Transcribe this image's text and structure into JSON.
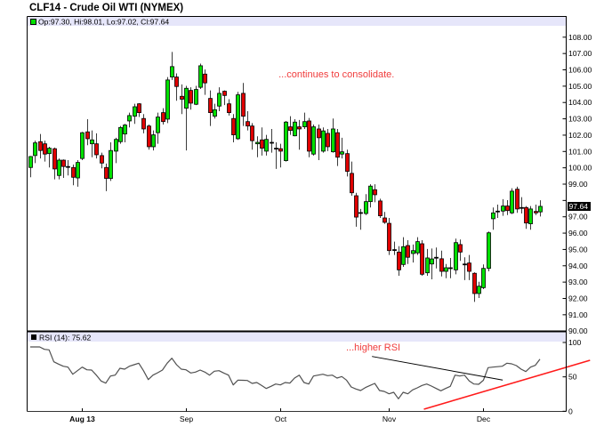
{
  "header": {
    "title": "CLF14 - Crude Oil WTI (NYMEX)"
  },
  "main_panel": {
    "legend_icon": "green-square-icon",
    "legend_text": "Op:97.30, Hi:98.01, Lo:97.02, Cl:97.64",
    "current_price_label": "97.64"
  },
  "rsi_panel": {
    "legend_icon": "black-square-icon",
    "legend_text": "RSI (14): 75.62"
  },
  "colors": {
    "up": "#00e000",
    "down": "#e00000",
    "doji": "#000000",
    "wick": "#3c3c3c",
    "band": "#e6e6fa",
    "annotation": "#f03c3c",
    "rsi_line": "#505050",
    "trend_black": "#000000",
    "trend_red": "#ff1a1a"
  },
  "chart_data": [
    {
      "type": "candlestick",
      "title": "CLF14 - Crude Oil WTI (NYMEX)",
      "legend": "Op:97.30, Hi:98.01, Lo:97.02, Cl:97.64",
      "legend_position": "top-left",
      "xlabel": "",
      "ylabel": "",
      "grid": false,
      "ylim": [
        90,
        109.28
      ],
      "y_ticks": [
        90,
        91,
        92,
        93,
        94,
        95,
        96,
        97,
        98,
        99,
        100,
        101,
        102,
        103,
        104,
        105,
        106,
        107,
        108
      ],
      "y_tick_labels": [
        "90.00",
        "91.00",
        "92.00",
        "93.00",
        "94.00",
        "95.00",
        "96.00",
        "97.00",
        "98.00",
        "99.00",
        "100.00",
        "101.00",
        "102.00",
        "103.00",
        "104.00",
        "105.00",
        "106.00",
        "107.00",
        "108.00"
      ],
      "current_price": 97.64,
      "current_price_label": "97.64",
      "x_ticks": [
        {
          "label": "Aug 13",
          "index": 11,
          "bold": true
        },
        {
          "label": "Sep",
          "index": 33,
          "bold": false
        },
        {
          "label": "Oct",
          "index": 53,
          "bold": false
        },
        {
          "label": "Nov",
          "index": 76,
          "bold": false
        },
        {
          "label": "Dec",
          "index": 96,
          "bold": false
        }
      ],
      "series": [
        {
          "name": "CLF14",
          "ohlc_fields": [
            "open",
            "high",
            "low",
            "close"
          ],
          "ohlc": [
            [
              100.02,
              100.72,
              99.42,
              100.69
            ],
            [
              100.75,
              101.66,
              100.29,
              101.53
            ],
            [
              101.6,
              102.07,
              100.57,
              101.06
            ],
            [
              101.47,
              101.66,
              100.38,
              100.84
            ],
            [
              100.87,
              101.29,
              100.02,
              101.2
            ],
            [
              101.17,
              101.24,
              99.29,
              99.93
            ],
            [
              99.53,
              100.57,
              99.29,
              100.47
            ],
            [
              100.47,
              100.51,
              99.38,
              100.08
            ],
            [
              100.08,
              100.47,
              99.53,
              100.08
            ],
            [
              100.02,
              100.2,
              98.93,
              99.42
            ],
            [
              99.38,
              100.47,
              98.84,
              100.33
            ],
            [
              100.57,
              102.2,
              100.47,
              102.15
            ],
            [
              102.2,
              102.98,
              101.38,
              101.78
            ],
            [
              101.47,
              102.29,
              100.65,
              101.71
            ],
            [
              101.47,
              102.11,
              100.57,
              100.8
            ],
            [
              100.75,
              100.93,
              99.97,
              100.29
            ],
            [
              100.02,
              100.26,
              98.57,
              99.35
            ],
            [
              99.35,
              101.56,
              99.2,
              101.06
            ],
            [
              101.02,
              101.84,
              100.29,
              101.74
            ],
            [
              101.6,
              102.56,
              101.47,
              102.47
            ],
            [
              102.07,
              102.69,
              101.56,
              102.62
            ],
            [
              102.87,
              103.38,
              102.47,
              103.2
            ],
            [
              103.16,
              103.92,
              102.69,
              103.74
            ],
            [
              103.92,
              103.96,
              103.11,
              103.38
            ],
            [
              103.02,
              103.29,
              102.11,
              102.38
            ],
            [
              102.56,
              102.65,
              101.11,
              101.29
            ],
            [
              101.29,
              102.29,
              101.06,
              102.02
            ],
            [
              102.15,
              103.38,
              101.47,
              103.11
            ],
            [
              103.38,
              103.65,
              102.65,
              102.83
            ],
            [
              102.98,
              105.56,
              102.74,
              105.38
            ],
            [
              105.56,
              107.1,
              105.38,
              106.2
            ],
            [
              105.56,
              105.78,
              104.11,
              104.98
            ],
            [
              104.38,
              105.11,
              103.29,
              104.2
            ],
            [
              103.65,
              105.02,
              101.06,
              104.87
            ],
            [
              104.74,
              104.93,
              103.56,
              103.96
            ],
            [
              103.89,
              105.02,
              103.84,
              104.8
            ],
            [
              104.93,
              106.38,
              104.83,
              106.25
            ],
            [
              105.74,
              106.02,
              104.47,
              105.2
            ],
            [
              104.25,
              104.74,
              102.56,
              103.38
            ],
            [
              103.16,
              103.92,
              103.02,
              103.56
            ],
            [
              103.78,
              104.93,
              103.47,
              104.56
            ],
            [
              104.69,
              104.74,
              103.84,
              104.43
            ],
            [
              103.92,
              104.2,
              103.2,
              103.38
            ],
            [
              103.02,
              103.29,
              101.56,
              102.02
            ],
            [
              101.78,
              104.65,
              101.71,
              104.47
            ],
            [
              104.56,
              105.2,
              102.56,
              103.16
            ],
            [
              102.83,
              103.47,
              102.29,
              102.56
            ],
            [
              102.56,
              102.74,
              101.11,
              101.66
            ],
            [
              101.47,
              101.93,
              100.65,
              101.56
            ],
            [
              101.71,
              102.47,
              100.75,
              101.2
            ],
            [
              101.02,
              102.02,
              100.75,
              101.74
            ],
            [
              101.56,
              102.38,
              100.93,
              101.56
            ],
            [
              101.2,
              101.56,
              99.93,
              101.2
            ],
            [
              101.17,
              101.47,
              100.02,
              101.02
            ],
            [
              100.44,
              102.87,
              100.38,
              102.8
            ],
            [
              102.51,
              103.16,
              102.02,
              102.29
            ],
            [
              101.96,
              102.98,
              101.93,
              102.8
            ],
            [
              102.51,
              102.93,
              101.11,
              102.38
            ],
            [
              102.51,
              103.38,
              102.38,
              102.83
            ],
            [
              102.87,
              103.05,
              100.65,
              101.02
            ],
            [
              100.84,
              102.65,
              100.75,
              102.51
            ],
            [
              102.38,
              102.65,
              100.47,
              101.84
            ],
            [
              101.02,
              102.47,
              100.93,
              102.26
            ],
            [
              102.11,
              102.38,
              101.02,
              101.29
            ],
            [
              100.98,
              103.02,
              100.93,
              102.38
            ],
            [
              102.15,
              102.38,
              100.11,
              100.65
            ],
            [
              100.84,
              101.84,
              100.57,
              100.98
            ],
            [
              100.87,
              101.11,
              99.47,
              99.78
            ],
            [
              99.66,
              100.38,
              98.29,
              98.47
            ],
            [
              98.29,
              98.47,
              96.39,
              96.98
            ],
            [
              97.26,
              97.48,
              96.21,
              97.26
            ],
            [
              97.2,
              98.39,
              97.11,
              97.93
            ],
            [
              97.93,
              98.99,
              97.57,
              98.88
            ],
            [
              98.66,
              98.99,
              97.89,
              98.35
            ],
            [
              97.97,
              98.11,
              96.93,
              97.06
            ],
            [
              96.93,
              97.3,
              96.57,
              96.66
            ],
            [
              96.6,
              96.93,
              94.66,
              94.93
            ],
            [
              94.99,
              95.48,
              94.66,
              94.99
            ],
            [
              94.84,
              95.2,
              93.39,
              93.75
            ],
            [
              94.08,
              95.75,
              93.93,
              95.17
            ],
            [
              95.24,
              95.57,
              94.11,
              94.52
            ],
            [
              94.75,
              95.3,
              94.2,
              94.93
            ],
            [
              94.79,
              95.75,
              94.66,
              95.48
            ],
            [
              95.35,
              95.57,
              93.39,
              93.48
            ],
            [
              93.57,
              95.03,
              93.39,
              94.48
            ],
            [
              94.11,
              95.06,
              93.17,
              94.42
            ],
            [
              94.52,
              95.12,
              93.84,
              94.52
            ],
            [
              94.43,
              94.93,
              93.35,
              93.66
            ],
            [
              93.66,
              94.11,
              93.24,
              93.88
            ],
            [
              93.88,
              94.48,
              93.24,
              93.88
            ],
            [
              93.75,
              95.66,
              93.48,
              95.42
            ],
            [
              95.3,
              95.61,
              94.3,
              94.84
            ],
            [
              94.11,
              94.52,
              93.12,
              94.11
            ],
            [
              94.17,
              94.66,
              93.12,
              93.66
            ],
            [
              93.54,
              93.6,
              91.79,
              92.3
            ],
            [
              92.3,
              93.02,
              92.03,
              92.75
            ],
            [
              92.66,
              94.08,
              92.57,
              93.84
            ],
            [
              93.84,
              96.1,
              93.66,
              96.02
            ],
            [
              96.88,
              97.57,
              96.21,
              97.24
            ],
            [
              97.35,
              97.75,
              96.93,
              97.35
            ],
            [
              97.35,
              98.08,
              97.06,
              97.66
            ],
            [
              97.66,
              98.02,
              97.11,
              97.38
            ],
            [
              97.24,
              98.75,
              97.17,
              98.57
            ],
            [
              98.69,
              98.84,
              97.24,
              97.48
            ],
            [
              97.57,
              98.2,
              97.2,
              97.57
            ],
            [
              97.57,
              97.66,
              96.26,
              96.62
            ],
            [
              96.57,
              97.66,
              96.21,
              97.48
            ],
            [
              97.33,
              97.75,
              97.11,
              97.24
            ],
            [
              97.3,
              98.01,
              97.02,
              97.64
            ]
          ]
        }
      ],
      "annotations": [
        {
          "text": "...continues to consolidate.",
          "index": 52.6,
          "value": 105.54,
          "color": "#f03c3c"
        }
      ]
    },
    {
      "type": "line",
      "title": "RSI (14): 75.62",
      "legend_position": "top-left",
      "xlabel": "",
      "ylabel": "",
      "grid": false,
      "ylim": [
        0,
        100
      ],
      "y_ticks": [
        0,
        50,
        100
      ],
      "y_tick_labels": [
        "0",
        "50",
        "100"
      ],
      "series": [
        {
          "name": "RSI (14)",
          "last_value": 75.62,
          "values": [
            93.5,
            93.5,
            93.5,
            90.0,
            89.3,
            71.9,
            68.6,
            65.5,
            64.2,
            53.8,
            59.0,
            64.2,
            60.3,
            59.9,
            52.5,
            44.0,
            40.9,
            51.2,
            52.5,
            62.5,
            61.2,
            65.5,
            67.7,
            69.9,
            59.0,
            46.1,
            52.5,
            56.0,
            59.9,
            69.9,
            77.1,
            67.7,
            61.2,
            60.3,
            55.6,
            56.9,
            59.9,
            56.9,
            52.5,
            58.2,
            59.0,
            55.6,
            52.5,
            38.3,
            45.3,
            45.0,
            44.8,
            40.5,
            41.8,
            37.5,
            33.1,
            36.2,
            39.6,
            38.3,
            41.8,
            40.9,
            48.3,
            52.5,
            41.8,
            39.6,
            51.2,
            52.5,
            53.8,
            51.7,
            52.5,
            48.3,
            50.5,
            45.3,
            35.3,
            32.3,
            30.1,
            34.4,
            37.5,
            40.5,
            30.1,
            28.8,
            25.4,
            27.6,
            18.1,
            27.6,
            25.4,
            31.0,
            34.0,
            37.5,
            39.6,
            36.6,
            33.1,
            29.8,
            33.1,
            36.2,
            52.5,
            51.2,
            52.5,
            44.0,
            39.6,
            39.2,
            45.0,
            63.4,
            64.2,
            64.8,
            65.5,
            69.9,
            68.9,
            66.4,
            61.2,
            57.7,
            64.2,
            66.8,
            75.62
          ]
        }
      ],
      "annotations": [
        {
          "text": "...higher RSI",
          "index": 66.9,
          "value": 88.4,
          "color": "#f03c3c"
        }
      ],
      "trend_lines": [
        {
          "name": "rsi-downtrend-line",
          "x1_index": 72.4,
          "y1_value": 79.7,
          "x2_index": 100.1,
          "y2_value": 45.3,
          "color": "#000000"
        },
        {
          "name": "rsi-uptrend-line",
          "x1_index": 83.4,
          "y1_value": 3.0,
          "x2_index": 118.6,
          "y2_value": 74.1,
          "color": "#ff1a1a"
        }
      ]
    }
  ]
}
